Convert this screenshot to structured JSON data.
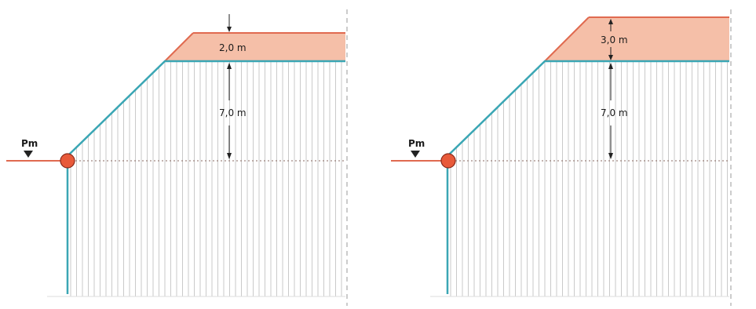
{
  "colors": {
    "background": "#ffffff",
    "water_line": "#e06a50",
    "surcharge_fill": "#f5bfa8",
    "surcharge_edge": "#e06a50",
    "slope_line": "#3aa6b4",
    "hatch": "#bdbdbd",
    "pin_fill": "#e85a3a",
    "pin_stroke": "#8a2a1a",
    "marker": "#222222",
    "dashed": "#999999"
  },
  "icons": {
    "water_level_marker": "inverted-triangle-icon",
    "pivot_point": "circle-icon"
  },
  "panels": [
    {
      "id": "left",
      "water_level_label": "Pm",
      "top_dimension_label": "2,0 m",
      "lower_dimension_label": "7,0 m"
    },
    {
      "id": "right",
      "water_level_label": "Pm",
      "top_dimension_label": "3,0 m",
      "lower_dimension_label": "7,0 m"
    }
  ]
}
